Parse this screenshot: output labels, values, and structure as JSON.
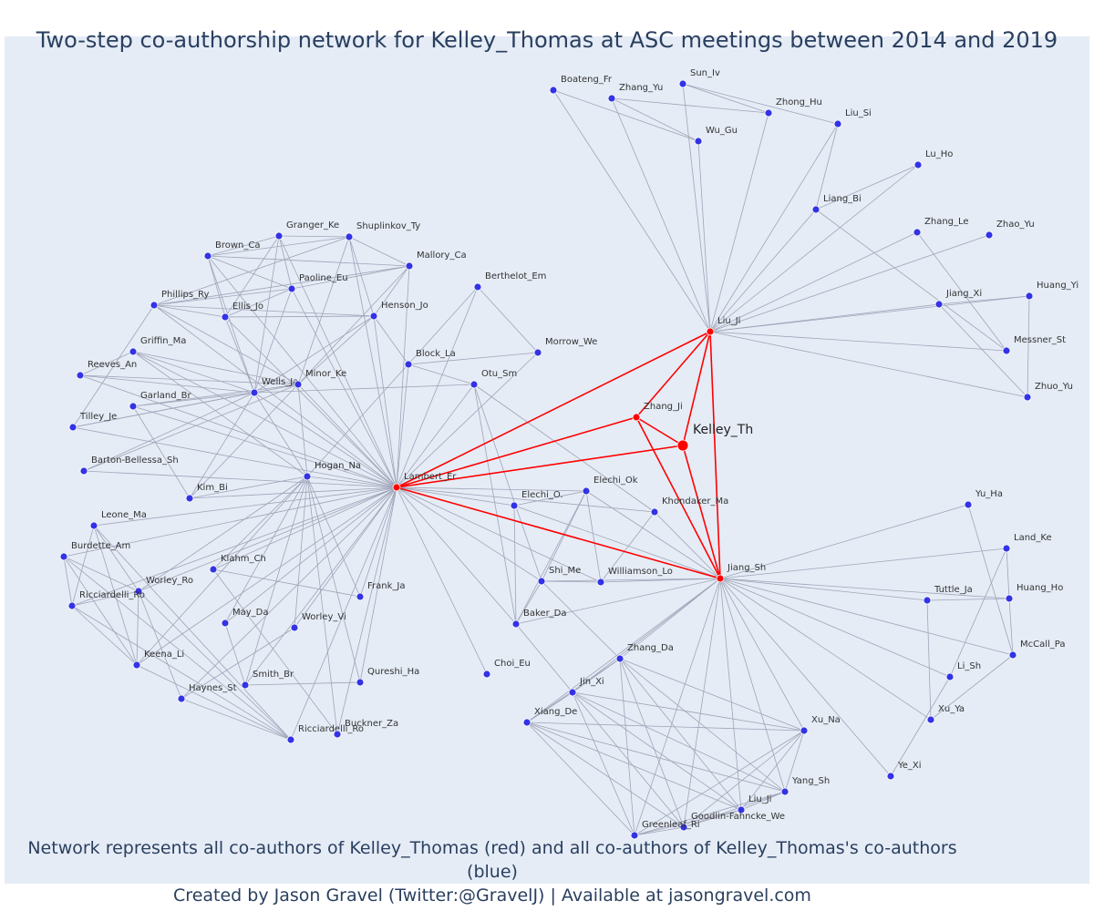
{
  "title": "Two-step co-authorship network for Kelley_Thomas at ASC meetings between 2014 and 2019",
  "caption": {
    "line1": "Network represents all co-authors of Kelley_Thomas (red) and all co-authors of Kelley_Thomas's co-authors (blue)",
    "line2": "Created by Jason Gravel (Twitter:@GravelJ) | Available at jasongravel.com"
  },
  "colors": {
    "background": "#e5ecf6",
    "coauthor": "#ff0000",
    "second_step": "#3333e6",
    "edge": "#a0a4b8",
    "red_edge": "#ff0000"
  },
  "nodes": [
    {
      "id": "Kelley_Th",
      "red": true,
      "big": true
    },
    {
      "id": "Zhang_Ji",
      "red": true
    },
    {
      "id": "Liu_Ji",
      "red": true
    },
    {
      "id": "Lambert_Er",
      "red": true
    },
    {
      "id": "Jiang_Sh",
      "red": true
    },
    {
      "id": "Boateng_Fr"
    },
    {
      "id": "Zhang_Yu"
    },
    {
      "id": "Sun_Iv"
    },
    {
      "id": "Zhong_Hu"
    },
    {
      "id": "Liu_Si"
    },
    {
      "id": "Wu_Gu"
    },
    {
      "id": "Lu_Ho"
    },
    {
      "id": "Liang_Bi"
    },
    {
      "id": "Zhang_Le"
    },
    {
      "id": "Zhao_Yu"
    },
    {
      "id": "Huang_Yi"
    },
    {
      "id": "Jiang_Xi"
    },
    {
      "id": "Messner_St"
    },
    {
      "id": "Zhuo_Yu"
    },
    {
      "id": "Granger_Ke"
    },
    {
      "id": "Shuplinkov_Ty"
    },
    {
      "id": "Brown_Ca"
    },
    {
      "id": "Mallory_Ca"
    },
    {
      "id": "Paoline_Eu"
    },
    {
      "id": "Phillips_Ry"
    },
    {
      "id": "Ellis_Jo"
    },
    {
      "id": "Henson_Jo"
    },
    {
      "id": "Griffin_Ma"
    },
    {
      "id": "Reeves_An"
    },
    {
      "id": "Wells_Ja"
    },
    {
      "id": "Minor_Ke"
    },
    {
      "id": "Garland_Br"
    },
    {
      "id": "Tilley_Je"
    },
    {
      "id": "Barton-Bellessa_Sh"
    },
    {
      "id": "Hogan_Na"
    },
    {
      "id": "Kim_Bi"
    },
    {
      "id": "Leone_Ma"
    },
    {
      "id": "Burdette_Am"
    },
    {
      "id": "Klahm_Ch"
    },
    {
      "id": "Worley_Ro"
    },
    {
      "id": "Ricciardelli_Ro"
    },
    {
      "id": "May_Da"
    },
    {
      "id": "Worley_Vi"
    },
    {
      "id": "Keena_Li"
    },
    {
      "id": "Smith_Br"
    },
    {
      "id": "Haynes_St"
    },
    {
      "id": "Ricciardelli_Ro2",
      "label": "Ricciardelli_Ro"
    },
    {
      "id": "Buckner_Za"
    },
    {
      "id": "Frank_Ja"
    },
    {
      "id": "Qureshi_Ha"
    },
    {
      "id": "Berthelot_Em"
    },
    {
      "id": "Morrow_We"
    },
    {
      "id": "Block_La"
    },
    {
      "id": "Otu_Sm"
    },
    {
      "id": "Elechi_Ok"
    },
    {
      "id": "Elechi_O."
    },
    {
      "id": "Khondaker_Ma"
    },
    {
      "id": "Shi_Me"
    },
    {
      "id": "Williamson_Lo"
    },
    {
      "id": "Baker_Da"
    },
    {
      "id": "Choi_Eu"
    },
    {
      "id": "Zhang_Da"
    },
    {
      "id": "Jin_Xi"
    },
    {
      "id": "Xiang_De"
    },
    {
      "id": "Xu_Na"
    },
    {
      "id": "Yang_Sh"
    },
    {
      "id": "Liu_Ji2",
      "label": "Liu_Ji"
    },
    {
      "id": "Goodlin-Fahncke_We"
    },
    {
      "id": "Greenleaf_Ri"
    },
    {
      "id": "Yu_Ha"
    },
    {
      "id": "Land_Ke"
    },
    {
      "id": "Tuttle_Ja"
    },
    {
      "id": "Huang_Ho"
    },
    {
      "id": "McCall_Pa"
    },
    {
      "id": "Li_Sh"
    },
    {
      "id": "Xu_Ya"
    },
    {
      "id": "Ye_Xi"
    }
  ]
}
